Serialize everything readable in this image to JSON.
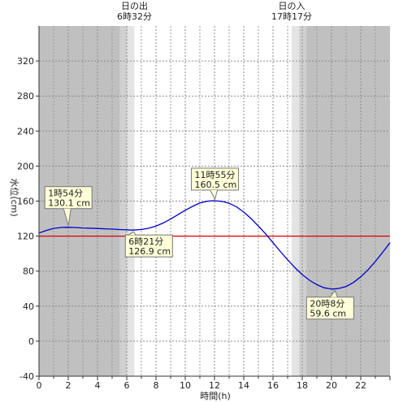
{
  "chart_data": {
    "type": "line",
    "xlabel": "時間(h)",
    "ylabel": "水位(cm)",
    "xlim": [
      0,
      24
    ],
    "ylim": [
      -40,
      360
    ],
    "x_ticks": [
      0,
      2,
      4,
      6,
      8,
      10,
      12,
      14,
      16,
      18,
      20,
      22
    ],
    "y_ticks": [
      -40,
      0,
      40,
      80,
      120,
      160,
      200,
      240,
      280,
      320
    ],
    "reference_line": {
      "value": 120,
      "color": "#e00000"
    },
    "series": [
      {
        "color": "#0000cc",
        "x": [
          0,
          0.5,
          1,
          1.5,
          1.9,
          2.5,
          3,
          4,
          5,
          5.5,
          6,
          6.35,
          7,
          7.5,
          8,
          8.5,
          9,
          9.5,
          10,
          10.5,
          11,
          11.5,
          11.92,
          12.5,
          13,
          13.5,
          14,
          14.5,
          15,
          15.5,
          16,
          16.5,
          17,
          17.5,
          18,
          18.5,
          19,
          19.5,
          20,
          20.13,
          20.5,
          21,
          21.5,
          22,
          22.5,
          23,
          23.5,
          24
        ],
        "y": [
          123.5,
          126.5,
          128.8,
          129.8,
          130.1,
          129.8,
          129.3,
          128.7,
          128.0,
          127.5,
          127.1,
          126.9,
          127.5,
          129.0,
          131.5,
          135.0,
          139.5,
          144.5,
          149.5,
          154.0,
          157.8,
          159.8,
          160.5,
          159.7,
          157.5,
          153.5,
          147.5,
          140.0,
          131.5,
          122.5,
          112.5,
          102.5,
          93.0,
          84.0,
          76.0,
          69.5,
          64.5,
          61.0,
          59.7,
          59.6,
          60.2,
          62.5,
          67.0,
          73.5,
          81.5,
          91.0,
          101.5,
          112.5
        ]
      }
    ],
    "annotations": [
      {
        "x": 1.9,
        "y": 130.1,
        "time": "1時54分",
        "value": "130.1 cm"
      },
      {
        "x": 6.35,
        "y": 126.9,
        "time": "6時21分",
        "value": "126.9 cm"
      },
      {
        "x": 11.92,
        "y": 160.5,
        "time": "11時55分",
        "value": "160.5 cm"
      },
      {
        "x": 20.13,
        "y": 59.6,
        "time": "20時8分",
        "value": "59.6 cm"
      }
    ],
    "sunrise": {
      "label": "日の出",
      "time": "6時32分",
      "x": 6.53
    },
    "sunset": {
      "label": "日の入",
      "time": "17時17分",
      "x": 17.28
    },
    "colors": {
      "night": "#c0c0c0",
      "twilight_outer": "#d0d0d0",
      "twilight_inner": "#e4e4e4",
      "day": "#ffffff"
    }
  }
}
